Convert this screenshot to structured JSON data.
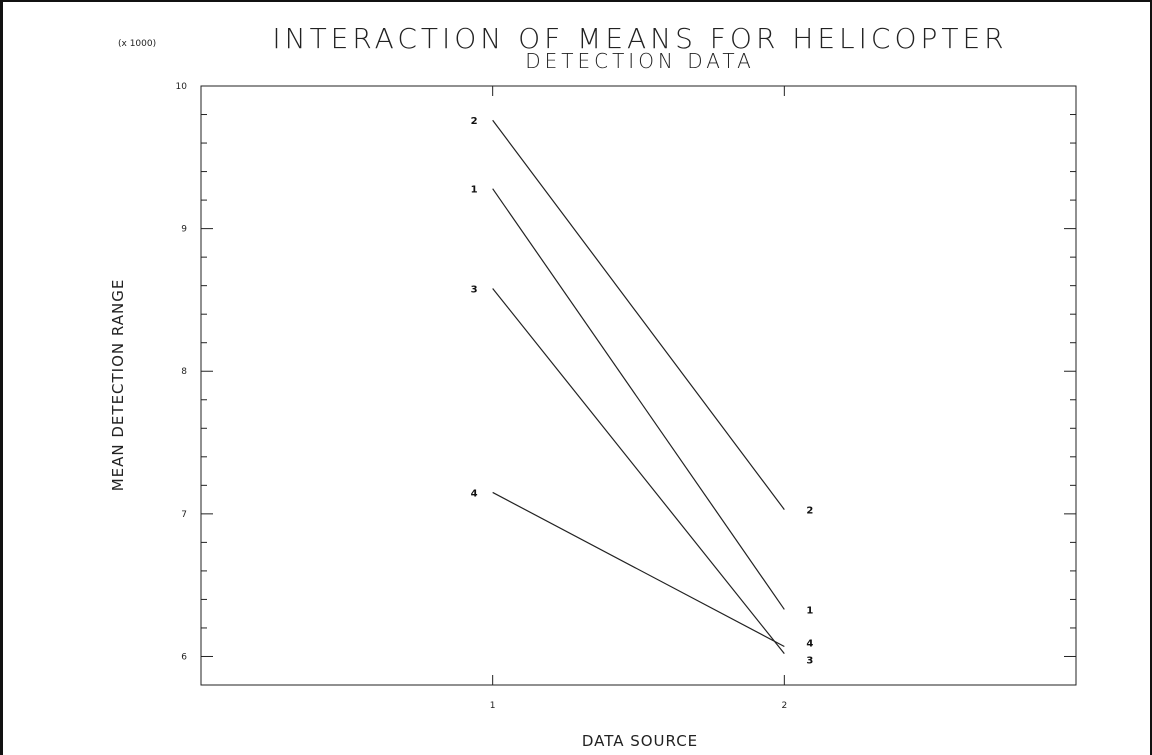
{
  "chart_data": {
    "type": "line",
    "title_line1": "INTERACTION OF MEANS FOR HELICOPTER",
    "title_line2": "DETECTION DATA",
    "ylabel": "MEAN DETECTION RANGE",
    "xlabel": "DATA SOURCE",
    "y_multiplier": "(x 1000)",
    "x_categories": [
      1,
      2
    ],
    "x_tick_labels": [
      "1",
      "2"
    ],
    "xlim": [
      0,
      3
    ],
    "ylim": [
      5.8,
      10
    ],
    "y_tick_values": [
      6,
      7,
      8,
      9,
      10
    ],
    "y_tick_labels": [
      "6",
      "7",
      "8",
      "9",
      "10"
    ],
    "series": [
      {
        "name": "1",
        "values": [
          9.28,
          6.33
        ]
      },
      {
        "name": "2",
        "values": [
          9.76,
          7.03
        ]
      },
      {
        "name": "3",
        "values": [
          8.58,
          6.02
        ]
      },
      {
        "name": "4",
        "values": [
          7.15,
          6.07
        ]
      }
    ],
    "grid": false
  }
}
